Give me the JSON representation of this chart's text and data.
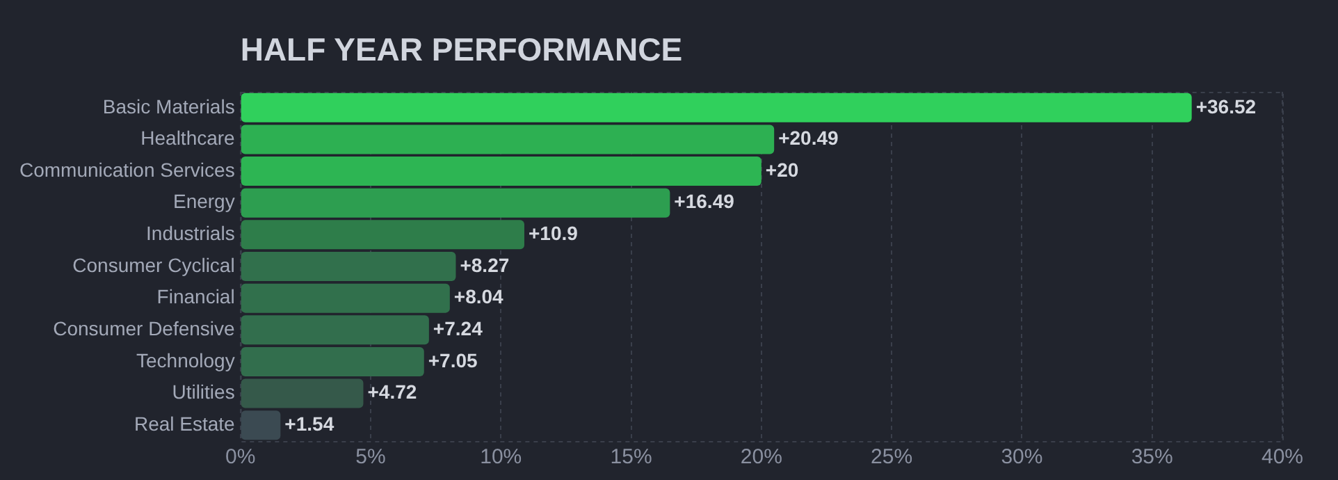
{
  "chart_data": {
    "type": "bar",
    "orientation": "horizontal",
    "title": "HALF YEAR PERFORMANCE",
    "categories": [
      "Basic Materials",
      "Healthcare",
      "Communication Services",
      "Energy",
      "Industrials",
      "Consumer Cyclical",
      "Financial",
      "Consumer Defensive",
      "Technology",
      "Utilities",
      "Real Estate"
    ],
    "values": [
      36.52,
      20.49,
      20,
      16.49,
      10.9,
      8.27,
      8.04,
      7.24,
      7.05,
      4.72,
      1.54
    ],
    "colors": [
      "#30d05c",
      "#2db052",
      "#2db553",
      "#2d9e50",
      "#2e7d4a",
      "#31704c",
      "#31704c",
      "#326e4d",
      "#326e4d",
      "#35594a",
      "#3b4a52"
    ],
    "value_labels": [
      "+36.52",
      "+20.49",
      "+20",
      "+16.49",
      "+10.9",
      "+8.27",
      "+8.04",
      "+7.24",
      "+7.05",
      "+4.72",
      "+1.54"
    ],
    "xlim": [
      0,
      40
    ],
    "xticks": [
      {
        "value": 0,
        "label": "0%"
      },
      {
        "value": 5,
        "label": "5%"
      },
      {
        "value": 10,
        "label": "10%"
      },
      {
        "value": 15,
        "label": "15%"
      },
      {
        "value": 20,
        "label": "20%"
      },
      {
        "value": 25,
        "label": "25%"
      },
      {
        "value": 30,
        "label": "30%"
      },
      {
        "value": 35,
        "label": "35%"
      },
      {
        "value": 40,
        "label": "40%"
      }
    ],
    "grid": "x"
  }
}
